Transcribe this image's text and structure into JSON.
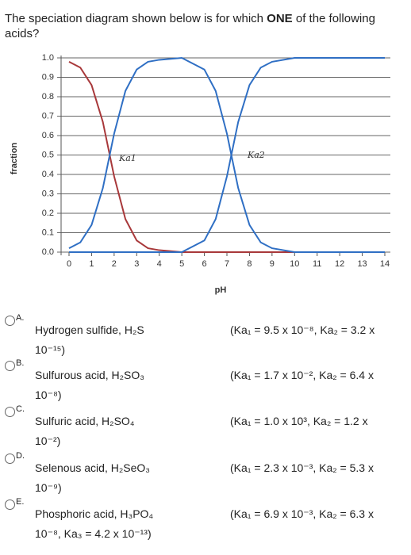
{
  "question": "The speciation diagram shown below is for which ONE of the following acids?",
  "chart_data": {
    "type": "line",
    "x_label": "pH",
    "y_label": "fraction",
    "annotations": [
      "Ka1",
      "Ka2"
    ],
    "x": [
      0,
      0.5,
      1,
      1.5,
      2,
      2.5,
      3,
      3.5,
      4,
      5,
      6,
      6.5,
      7,
      7.5,
      8,
      8.5,
      9,
      10,
      11,
      12,
      13,
      14
    ],
    "series": [
      {
        "color": "#a8383a",
        "values": [
          0.98,
          0.95,
          0.86,
          0.67,
          0.39,
          0.17,
          0.06,
          0.02,
          0.01,
          0,
          0,
          0,
          0,
          0,
          0,
          0,
          0,
          0,
          0,
          0,
          0,
          0
        ]
      },
      {
        "color": "#2f6fc4",
        "values": [
          0.02,
          0.05,
          0.14,
          0.33,
          0.61,
          0.83,
          0.94,
          0.98,
          0.99,
          1,
          0.94,
          0.83,
          0.61,
          0.33,
          0.14,
          0.05,
          0.02,
          0,
          0,
          0,
          0,
          0
        ]
      },
      {
        "color": "#2f6fc4",
        "values": [
          0,
          0,
          0,
          0,
          0,
          0,
          0,
          0,
          0,
          0,
          0.06,
          0.17,
          0.39,
          0.67,
          0.86,
          0.95,
          0.98,
          1,
          1,
          1,
          1,
          1
        ]
      }
    ],
    "xlim": [
      0,
      14
    ],
    "xticks": [
      0,
      1,
      2,
      3,
      4,
      5,
      6,
      7,
      8,
      9,
      10,
      11,
      12,
      13,
      14
    ],
    "ylim": [
      0,
      1
    ],
    "yticks": [
      {
        "value": 0,
        "label": "0.0"
      },
      0.1,
      0.2,
      0.3,
      0.4,
      0.5,
      0.6,
      0.7,
      0.8,
      0.9,
      {
        "value": 1,
        "label": "1.0"
      }
    ],
    "grid": true
  },
  "options": [
    {
      "letter": "A.",
      "name": "Hydrogen sulfide, H₂S",
      "constants": "(Ka₁ = 9.5 x 10⁻⁸, Ka₂ = 3.2 x",
      "continuation": "10⁻¹⁵)"
    },
    {
      "letter": "B.",
      "name": "Sulfurous acid, H₂SO₃",
      "constants": "(Ka₁ = 1.7 x 10⁻², Ka₂ = 6.4 x",
      "continuation": "10⁻⁸)"
    },
    {
      "letter": "C.",
      "name": "Sulfuric acid, H₂SO₄",
      "constants": "(Ka₁ = 1.0 x 10³, Ka₂ = 1.2 x",
      "continuation": "10⁻²)"
    },
    {
      "letter": "D.",
      "name": "Selenous acid, H₂SeO₃",
      "constants": "(Ka₁ = 2.3 x 10⁻³, Ka₂ = 5.3 x",
      "continuation": "10⁻⁹)"
    },
    {
      "letter": "E.",
      "name": "Phosphoric acid, H₃PO₄",
      "constants": "(Ka₁ = 6.9 x 10⁻³, Ka₂ = 6.3 x",
      "continuation": "10⁻⁸, Ka₃ = 4.2 x 10⁻¹³)"
    }
  ]
}
